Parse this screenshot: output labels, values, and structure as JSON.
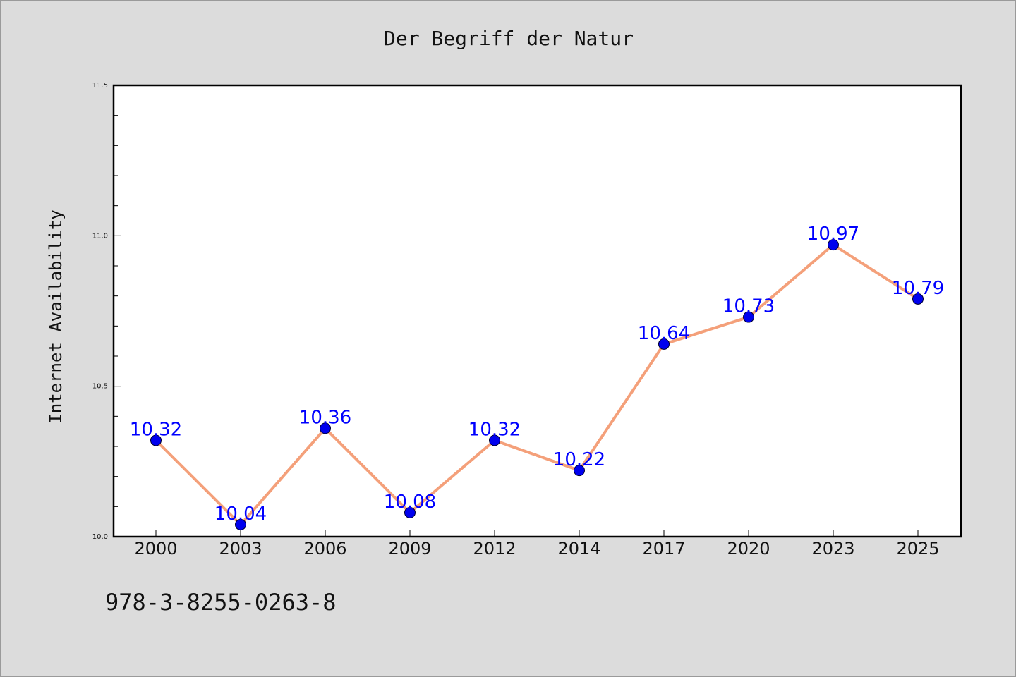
{
  "chart_data": {
    "type": "line",
    "title": "Der Begriff der Natur",
    "xlabel": "",
    "ylabel": "Internet Availability",
    "categories": [
      "2000",
      "2003",
      "2006",
      "2009",
      "2012",
      "2014",
      "2017",
      "2020",
      "2023",
      "2025"
    ],
    "values": [
      10.32,
      10.04,
      10.36,
      10.08,
      10.32,
      10.22,
      10.64,
      10.73,
      10.97,
      10.79
    ],
    "data_labels": [
      "10.32",
      "10.04",
      "10.36",
      "10.08",
      "10.32",
      "10.22",
      "10.64",
      "10.73",
      "10.97",
      "10.79"
    ],
    "ylim": [
      10.0,
      11.5
    ],
    "yticks": [
      "10.0",
      "10.5",
      "11.0",
      "11.5"
    ],
    "grid": false,
    "line_color": "#f4a07a",
    "marker_color": "#0000ee",
    "label_color": "#0000ff"
  },
  "footer": {
    "isbn": "978-3-8255-0263-8"
  }
}
